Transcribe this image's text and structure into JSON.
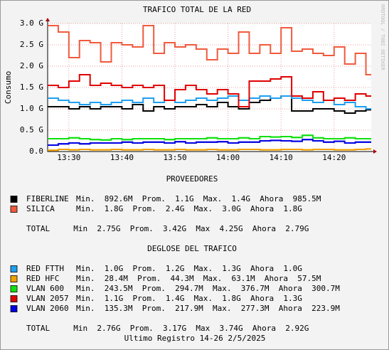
{
  "chart_data": {
    "type": "line",
    "title": "TRAFICO TOTAL DE LA RED",
    "y_label": "Consumo",
    "side_note": "RRDTOOL / TOBI OETIKER",
    "x": [
      806,
      808,
      810,
      812,
      814,
      816,
      818,
      820,
      822,
      824,
      826,
      828,
      830,
      832,
      834,
      836,
      838,
      840,
      842,
      844,
      846,
      848,
      850,
      852,
      854,
      856,
      858,
      860,
      862,
      864,
      866
    ],
    "xlim": [
      806,
      867
    ],
    "xticks": [
      {
        "value": 810,
        "label": "13:30"
      },
      {
        "value": 820,
        "label": "13:40"
      },
      {
        "value": 830,
        "label": "13:50"
      },
      {
        "value": 840,
        "label": "14:00"
      },
      {
        "value": 850,
        "label": "14:10"
      },
      {
        "value": 860,
        "label": "14:20"
      }
    ],
    "ylim": [
      0,
      3
    ],
    "yticks": [
      {
        "value": 0,
        "label": "0.0"
      },
      {
        "value": 0.5,
        "label": "0.5 G"
      },
      {
        "value": 1,
        "label": "1.0 G"
      },
      {
        "value": 1.5,
        "label": "1.5 G"
      },
      {
        "value": 2,
        "label": "2.0 G"
      },
      {
        "value": 2.5,
        "label": "2.5 G"
      },
      {
        "value": 3,
        "label": "3.0 G"
      }
    ],
    "grid": true,
    "series": [
      {
        "name": "FIBERLINE",
        "color": "#000000",
        "stats": "Min.  892.6M  Prom.  1.1G  Max.  1.4G  Ahora  985.5M",
        "values": [
          1.05,
          1.05,
          1.0,
          1.05,
          1.0,
          1.05,
          1.05,
          1.0,
          1.1,
          0.95,
          1.05,
          1.0,
          1.05,
          1.05,
          1.1,
          1.05,
          1.15,
          1.05,
          1.0,
          1.15,
          1.2,
          1.25,
          1.3,
          0.95,
          0.95,
          1.0,
          1.0,
          0.95,
          0.9,
          0.95,
          0.98
        ]
      },
      {
        "name": "SILICA",
        "color": "#f05a3c",
        "stats": "Min.  1.8G  Prom.  2.4G  Max.  3.0G  Ahora  1.8G",
        "values": [
          2.95,
          2.8,
          2.2,
          2.6,
          2.55,
          2.1,
          2.55,
          2.5,
          2.45,
          2.95,
          2.3,
          2.55,
          2.45,
          2.5,
          2.4,
          2.15,
          2.4,
          2.3,
          2.8,
          2.3,
          2.5,
          2.3,
          2.9,
          2.35,
          2.4,
          2.3,
          2.25,
          2.45,
          2.05,
          2.3,
          1.8
        ]
      },
      {
        "name": "RED FTTH",
        "color": "#1e9ff0",
        "stats": "Min.  1.0G  Prom.  1.2G  Max.  1.3G  Ahora  1.0G",
        "values": [
          1.25,
          1.2,
          1.15,
          1.1,
          1.15,
          1.1,
          1.15,
          1.2,
          1.15,
          1.25,
          1.15,
          1.2,
          1.15,
          1.2,
          1.25,
          1.2,
          1.25,
          1.3,
          1.2,
          1.25,
          1.3,
          1.25,
          1.3,
          1.25,
          1.2,
          1.15,
          1.2,
          1.1,
          1.15,
          1.05,
          1.0
        ]
      },
      {
        "name": "RED HFC",
        "color": "#f0a000",
        "stats": "Min.  28.4M  Prom.  44.3M  Max.  63.1M  Ahora  57.5M",
        "values": [
          0.03,
          0.05,
          0.04,
          0.05,
          0.04,
          0.04,
          0.05,
          0.04,
          0.04,
          0.05,
          0.04,
          0.04,
          0.05,
          0.04,
          0.04,
          0.05,
          0.04,
          0.04,
          0.05,
          0.05,
          0.04,
          0.04,
          0.05,
          0.05,
          0.04,
          0.05,
          0.05,
          0.04,
          0.04,
          0.05,
          0.06
        ]
      },
      {
        "name": "VLAN 600",
        "color": "#10e010",
        "stats": "Min.  243.5M  Prom.  294.7M  Max.  376.7M  Ahora  300.7M",
        "values": [
          0.3,
          0.3,
          0.32,
          0.3,
          0.28,
          0.27,
          0.3,
          0.28,
          0.3,
          0.3,
          0.3,
          0.28,
          0.3,
          0.3,
          0.3,
          0.32,
          0.3,
          0.3,
          0.32,
          0.3,
          0.35,
          0.34,
          0.35,
          0.33,
          0.38,
          0.32,
          0.3,
          0.3,
          0.32,
          0.3,
          0.3
        ]
      },
      {
        "name": "VLAN 2057",
        "color": "#e00000",
        "stats": "Min.  1.1G  Prom.  1.4G  Max.  1.8G  Ahora  1.3G",
        "values": [
          1.55,
          1.5,
          1.65,
          1.8,
          1.55,
          1.6,
          1.55,
          1.5,
          1.55,
          1.5,
          1.55,
          1.2,
          1.45,
          1.55,
          1.45,
          1.35,
          1.45,
          1.35,
          1.05,
          1.65,
          1.65,
          1.7,
          1.75,
          1.3,
          1.25,
          1.4,
          1.2,
          1.25,
          1.2,
          1.35,
          1.3
        ]
      },
      {
        "name": "VLAN 2060",
        "color": "#0000e0",
        "stats": "Min.  135.3M  Prom.  217.9M  Max.  277.3M  Ahora  223.9M",
        "values": [
          0.15,
          0.18,
          0.2,
          0.18,
          0.2,
          0.2,
          0.2,
          0.22,
          0.2,
          0.22,
          0.22,
          0.2,
          0.23,
          0.2,
          0.22,
          0.22,
          0.23,
          0.2,
          0.22,
          0.22,
          0.25,
          0.26,
          0.25,
          0.24,
          0.28,
          0.25,
          0.22,
          0.24,
          0.2,
          0.22,
          0.22
        ]
      }
    ],
    "legend_sections": [
      {
        "title": "PROVEEDORES",
        "total": "TOTAL     Min  2.75G  Prom.  3.42G  Max  4.25G  Ahora  2.79G"
      },
      {
        "title": "DEGLOSE DEL TRAFICO",
        "total": "TOTAL     Min  2.76G  Prom.  3.17G  Max  3.74G  Ahora  2.92G"
      }
    ],
    "footer": "Ultimo Registro 14-26 2/5/2025"
  }
}
